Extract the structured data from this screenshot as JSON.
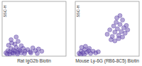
{
  "chart_data": [
    {
      "type": "scatter",
      "x_label": "Rat IgG2b Biotin",
      "y_label": "SSC-H",
      "x": [
        6,
        9,
        12,
        14,
        16,
        18,
        20,
        22,
        24,
        26,
        28,
        30,
        33,
        36,
        40,
        44,
        48,
        52,
        57,
        62,
        10,
        15,
        20,
        25,
        30,
        8,
        12,
        18,
        24,
        35,
        45,
        55,
        14,
        22
      ],
      "values": [
        6,
        10,
        8,
        14,
        6,
        11,
        9,
        16,
        7,
        12,
        10,
        6,
        14,
        9,
        12,
        8,
        15,
        10,
        13,
        9,
        20,
        24,
        22,
        27,
        19,
        4,
        4,
        5,
        4,
        5,
        6,
        5,
        30,
        35
      ],
      "xlim": [
        0,
        100
      ],
      "ylim": [
        0,
        100
      ],
      "tick_labels": false,
      "color": "#5a3fa6",
      "marker": "circle"
    },
    {
      "type": "scatter",
      "x_label": "Mouse Ly-6G (RB6-8C5) Biotin",
      "y_label": "SSC-H",
      "x": [
        6,
        9,
        12,
        15,
        18,
        21,
        24,
        28,
        32,
        36,
        10,
        16,
        22,
        8,
        14,
        50,
        54,
        58,
        60,
        62,
        64,
        66,
        68,
        70,
        72,
        74,
        76,
        78,
        80,
        56,
        62,
        68,
        74,
        65,
        70,
        82
      ],
      "values": [
        5,
        9,
        6,
        12,
        7,
        10,
        5,
        9,
        6,
        8,
        16,
        18,
        14,
        3,
        3,
        40,
        48,
        36,
        55,
        44,
        62,
        50,
        38,
        58,
        45,
        66,
        52,
        42,
        56,
        30,
        28,
        32,
        35,
        70,
        74,
        48
      ],
      "xlim": [
        0,
        100
      ],
      "ylim": [
        0,
        100
      ],
      "tick_labels": false,
      "color": "#5a3fa6",
      "marker": "circle"
    }
  ]
}
